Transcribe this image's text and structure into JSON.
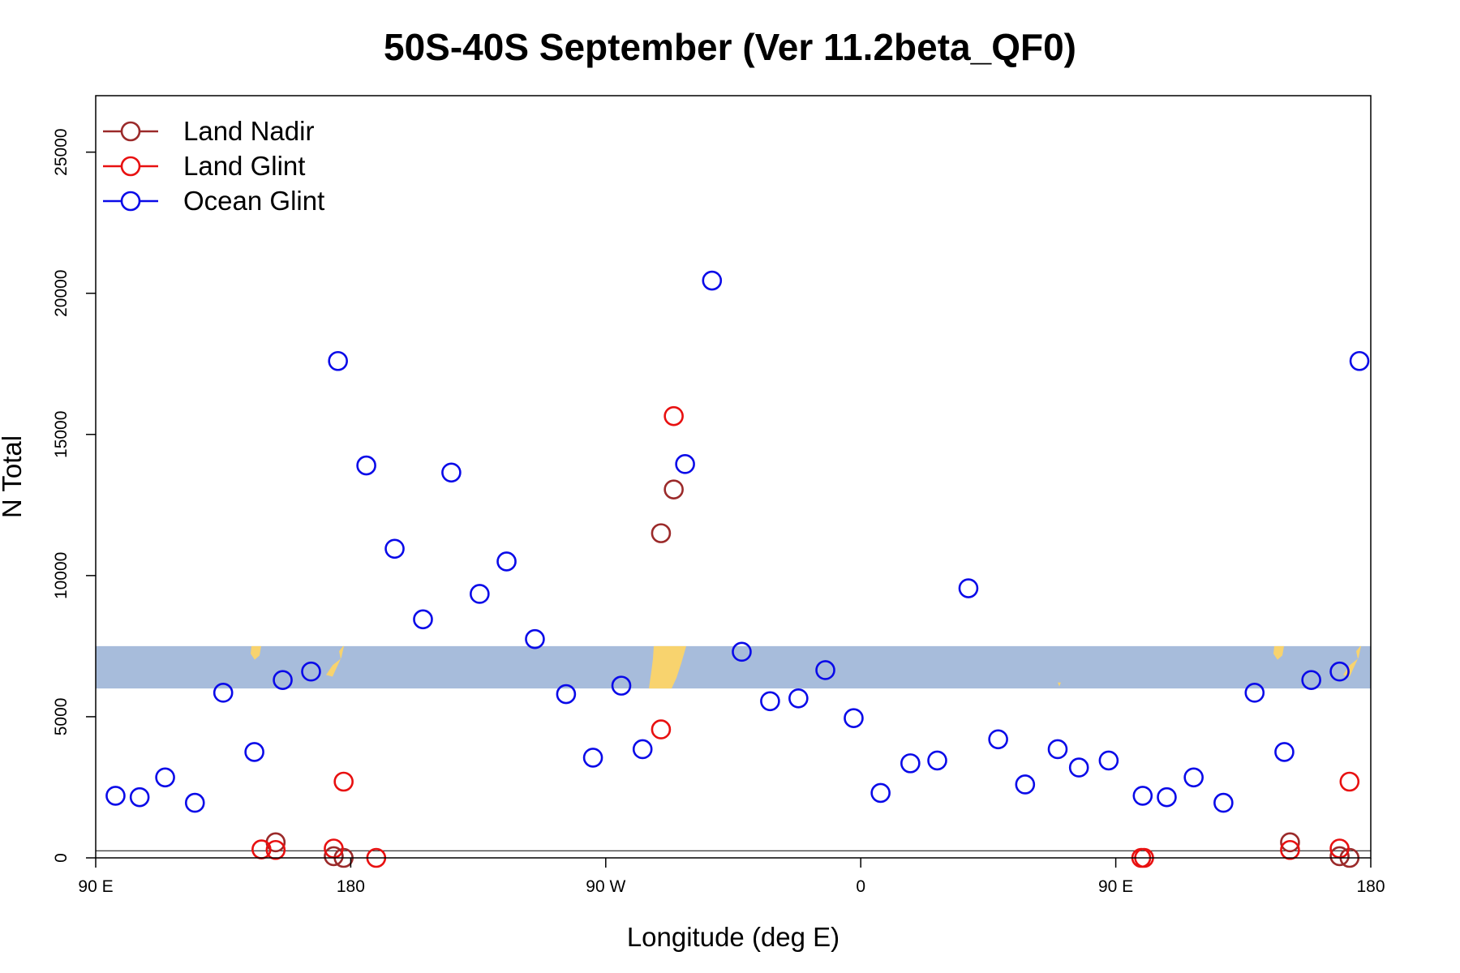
{
  "chart_data": {
    "type": "scatter",
    "title": "50S-40S September (Ver 11.2beta_QF0)",
    "xlabel": "Longitude (deg E)",
    "ylabel": "N Total",
    "xlim": [
      90,
      540
    ],
    "ylim": [
      0,
      27000
    ],
    "x_ticks": [
      {
        "value": 90,
        "label": "90 E"
      },
      {
        "value": 180,
        "label": "180"
      },
      {
        "value": 270,
        "label": "90 W"
      },
      {
        "value": 360,
        "label": "0"
      },
      {
        "value": 450,
        "label": "90 E"
      },
      {
        "value": 540,
        "label": "180"
      }
    ],
    "y_ticks": [
      {
        "value": 0,
        "label": "0"
      },
      {
        "value": 5000,
        "label": "5000"
      },
      {
        "value": 10000,
        "label": "10000"
      },
      {
        "value": 15000,
        "label": "15000"
      },
      {
        "value": 20000,
        "label": "20000"
      },
      {
        "value": 25000,
        "label": "25000"
      }
    ],
    "reference_lines": [
      0,
      250
    ],
    "latitude_band": {
      "y_range": [
        6000,
        7500
      ],
      "ocean_color": "#a7bcdb",
      "land_color": "#f8d36e"
    },
    "legend_position": "top-left",
    "grid": false,
    "series": [
      {
        "name": "Land Nadir",
        "color": "#9b2a2a",
        "points": [
          [
            153.5,
            550
          ],
          [
            174,
            60
          ],
          [
            177.5,
            0
          ],
          [
            289.5,
            11500
          ],
          [
            294,
            13050
          ],
          [
            511.5,
            550
          ],
          [
            529,
            60
          ],
          [
            532.5,
            0
          ]
        ]
      },
      {
        "name": "Land Glint",
        "color": "#e81010",
        "points": [
          [
            148.5,
            300
          ],
          [
            153.5,
            280
          ],
          [
            174,
            330
          ],
          [
            177.5,
            2700
          ],
          [
            189,
            0
          ],
          [
            289.5,
            4550
          ],
          [
            294,
            15650
          ],
          [
            459,
            0
          ],
          [
            460,
            0
          ],
          [
            511.5,
            280
          ],
          [
            529,
            330
          ],
          [
            532.5,
            2700
          ]
        ]
      },
      {
        "name": "Ocean Glint",
        "color": "#0a0ae8",
        "points": [
          [
            97,
            2200
          ],
          [
            105.5,
            2150
          ],
          [
            114.5,
            2850
          ],
          [
            125,
            1950
          ],
          [
            135,
            5850
          ],
          [
            146,
            3750
          ],
          [
            156,
            6300
          ],
          [
            166,
            6600
          ],
          [
            175.5,
            17600
          ],
          [
            185.5,
            13900
          ],
          [
            195.5,
            10950
          ],
          [
            205.5,
            8450
          ],
          [
            215.5,
            13650
          ],
          [
            225.5,
            9350
          ],
          [
            235,
            10500
          ],
          [
            245,
            7750
          ],
          [
            256,
            5800
          ],
          [
            265.5,
            3550
          ],
          [
            275.5,
            6100
          ],
          [
            283,
            3850
          ],
          [
            298,
            13950
          ],
          [
            307.5,
            20450
          ],
          [
            318,
            7300
          ],
          [
            328,
            5550
          ],
          [
            338,
            5650
          ],
          [
            347.5,
            6650
          ],
          [
            357.5,
            4950
          ],
          [
            367,
            2300
          ],
          [
            377.5,
            3350
          ],
          [
            387,
            3450
          ],
          [
            398,
            9550
          ],
          [
            408.5,
            4200
          ],
          [
            418,
            2600
          ],
          [
            429.5,
            3850
          ],
          [
            437,
            3200
          ],
          [
            447.5,
            3450
          ],
          [
            459.5,
            2200
          ],
          [
            468,
            2150
          ],
          [
            477.5,
            2850
          ],
          [
            488,
            1950
          ],
          [
            499,
            5850
          ],
          [
            509.5,
            3750
          ],
          [
            519,
            6300
          ],
          [
            529,
            6600
          ],
          [
            536,
            17600
          ]
        ]
      }
    ]
  }
}
